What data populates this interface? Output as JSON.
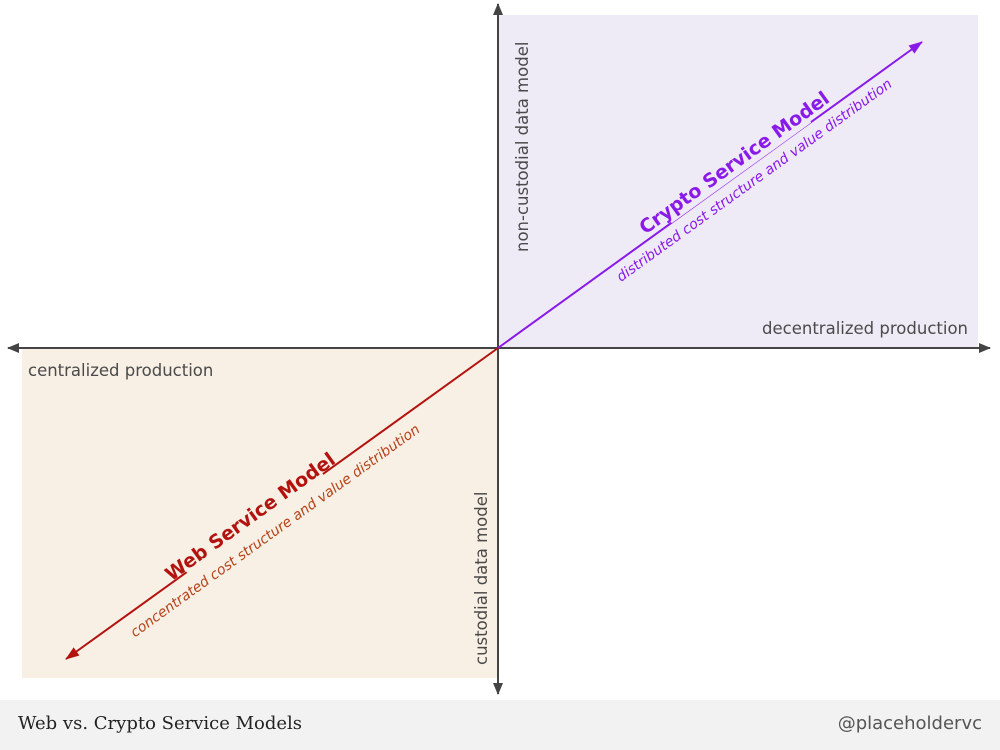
{
  "diagram": {
    "axes": {
      "x_positive_label": "decentralized production",
      "x_negative_label": "centralized production",
      "y_positive_label": "non-custodial data model",
      "y_negative_label": "custodial data model"
    },
    "crypto_model": {
      "title": "Crypto Service Model",
      "subtitle": "distributed cost structure and value distribution",
      "color": "#8a1ae8",
      "quadrant_fill": "#efebf6"
    },
    "web_model": {
      "title": "Web Service Model",
      "subtitle": "concentrated cost structure and value distribution",
      "color": "#b3130f",
      "subtitle_color": "#b5441a",
      "quadrant_fill": "#f8efe5"
    },
    "axis_color": "#444444"
  },
  "footer": {
    "title": "Web vs. Crypto Service Models",
    "handle": "@placeholdervc"
  }
}
